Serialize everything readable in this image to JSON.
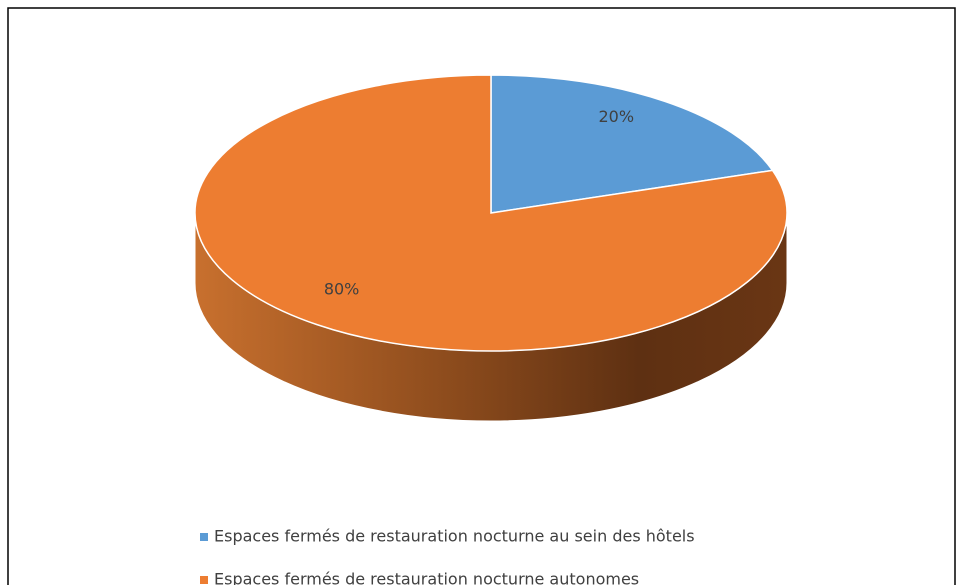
{
  "chart_data": {
    "type": "pie",
    "categories": [
      "Espaces fermés de restauration nocturne au sein des hôtels",
      "Espaces fermés de restauration nocturne autonomes"
    ],
    "values": [
      20,
      80
    ],
    "value_labels": [
      "20%",
      "80%"
    ],
    "colors": [
      "#5b9bd5",
      "#ed7d31"
    ]
  }
}
